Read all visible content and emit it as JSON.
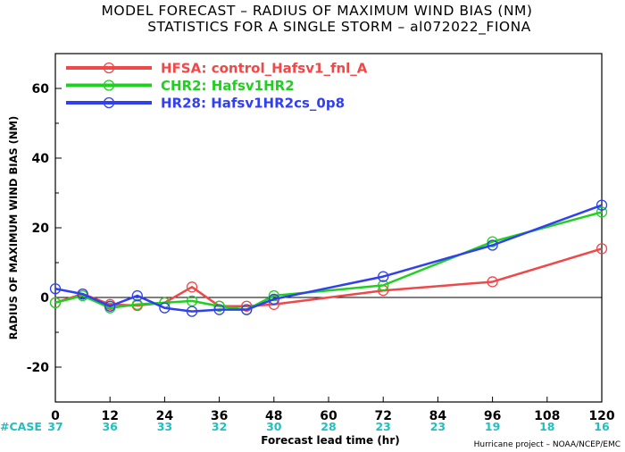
{
  "chart_data": {
    "type": "line",
    "title_line1": "MODEL FORECAST – RADIUS OF MAXIMUM WIND BIAS (NM)",
    "title_line2": "STATISTICS FOR A SINGLE STORM – al072022_FIONA",
    "xlabel": "Forecast lead time (hr)",
    "ylabel": "RADIUS OF MAXIMUM WIND BIAS (NM)",
    "xlim": [
      0,
      120
    ],
    "ylim": [
      -30,
      70
    ],
    "x_ticks": [
      0,
      12,
      24,
      36,
      48,
      60,
      72,
      84,
      96,
      108,
      120
    ],
    "y_ticks": [
      -20,
      0,
      20,
      40,
      60
    ],
    "zero_line": true,
    "case_label": "#CASE",
    "cases": [
      "37",
      "36",
      "33",
      "32",
      "30",
      "28",
      "23",
      "23",
      "19",
      "18",
      "16"
    ],
    "case_color": "#20c0c0",
    "credit": "Hurricane project – NOAA/NCEP/EMC",
    "legend_position": "top-left",
    "series": [
      {
        "name": "HFSA: control_Hafsv1_fnl_A",
        "color": "#f04848",
        "x": [
          0,
          6,
          12,
          18,
          24,
          30,
          36,
          42,
          48,
          72,
          96,
          120
        ],
        "y": [
          -1.5,
          1,
          -2,
          -2.3,
          -1.5,
          3,
          -2.5,
          -2.5,
          -2,
          2,
          4.5,
          14
        ]
      },
      {
        "name": "CHR2: Hafsv1HR2",
        "color": "#20d020",
        "x": [
          0,
          6,
          12,
          18,
          24,
          30,
          36,
          42,
          48,
          72,
          96,
          120
        ],
        "y": [
          -1.5,
          0.5,
          -3,
          -2,
          -1.5,
          -1,
          -2.5,
          -3.5,
          0.5,
          3.5,
          16,
          24.5
        ]
      },
      {
        "name": "HR28: Hafsv1HR2cs_0p8",
        "color": "#3040f0",
        "x": [
          0,
          6,
          12,
          18,
          24,
          30,
          36,
          42,
          48,
          72,
          96,
          120
        ],
        "y": [
          2.5,
          1,
          -2.5,
          0.5,
          -3,
          -4,
          -3.5,
          -3.5,
          -0.5,
          6,
          15,
          26.5
        ]
      }
    ]
  }
}
